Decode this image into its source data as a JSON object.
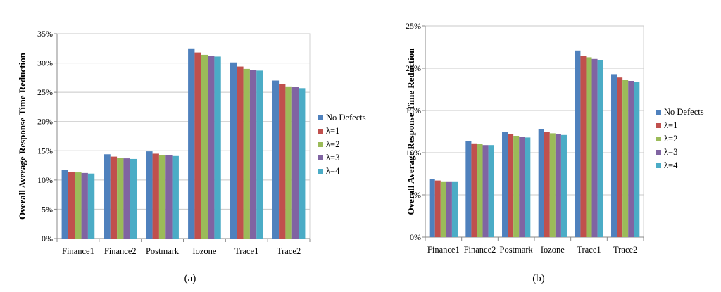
{
  "chart_data": [
    {
      "type": "bar",
      "caption": "(a)",
      "ylabel": "Overall Average Response Time Reduction",
      "ylim": [
        0,
        35
      ],
      "yticks": [
        "0%",
        "5%",
        "10%",
        "15%",
        "20%",
        "25%",
        "30%",
        "35%"
      ],
      "grid": true,
      "legend_position": "right",
      "categories": [
        "Finance1",
        "Finance2",
        "Postmark",
        "Iozone",
        "Trace1",
        "Trace2"
      ],
      "series": [
        {
          "name": "No Defects",
          "color": "#4F81BD",
          "values": [
            11.7,
            14.4,
            14.9,
            32.5,
            30.1,
            27.0
          ]
        },
        {
          "name": "λ=1",
          "color": "#C0504D",
          "values": [
            11.4,
            14.0,
            14.5,
            31.8,
            29.4,
            26.4
          ]
        },
        {
          "name": "λ=2",
          "color": "#9BBB59",
          "values": [
            11.3,
            13.8,
            14.3,
            31.4,
            29.0,
            26.0
          ]
        },
        {
          "name": "λ=3",
          "color": "#8064A2",
          "values": [
            11.2,
            13.7,
            14.2,
            31.2,
            28.8,
            25.9
          ]
        },
        {
          "name": "λ=4",
          "color": "#4BACC6",
          "values": [
            11.1,
            13.6,
            14.1,
            31.1,
            28.7,
            25.7
          ]
        }
      ]
    },
    {
      "type": "bar",
      "caption": "(b)",
      "ylabel": "Overall Average Response Time Reduction",
      "ylim": [
        0,
        25
      ],
      "yticks": [
        "0%",
        "5%",
        "10%",
        "15%",
        "20%",
        "25%"
      ],
      "grid": true,
      "legend_position": "right",
      "categories": [
        "Finance1",
        "Finance2",
        "Postmark",
        "Iozone",
        "Trace1",
        "Trace2"
      ],
      "series": [
        {
          "name": "No Defects",
          "color": "#4F81BD",
          "values": [
            6.9,
            11.4,
            12.5,
            12.8,
            22.1,
            19.3
          ]
        },
        {
          "name": "λ=1",
          "color": "#C0504D",
          "values": [
            6.7,
            11.1,
            12.2,
            12.5,
            21.5,
            18.9
          ]
        },
        {
          "name": "λ=2",
          "color": "#9BBB59",
          "values": [
            6.6,
            11.0,
            12.0,
            12.3,
            21.3,
            18.6
          ]
        },
        {
          "name": "λ=3",
          "color": "#8064A2",
          "values": [
            6.6,
            10.9,
            11.9,
            12.2,
            21.1,
            18.5
          ]
        },
        {
          "name": "λ=4",
          "color": "#4BACC6",
          "values": [
            6.6,
            10.9,
            11.8,
            12.1,
            21.0,
            18.4
          ]
        }
      ]
    }
  ]
}
